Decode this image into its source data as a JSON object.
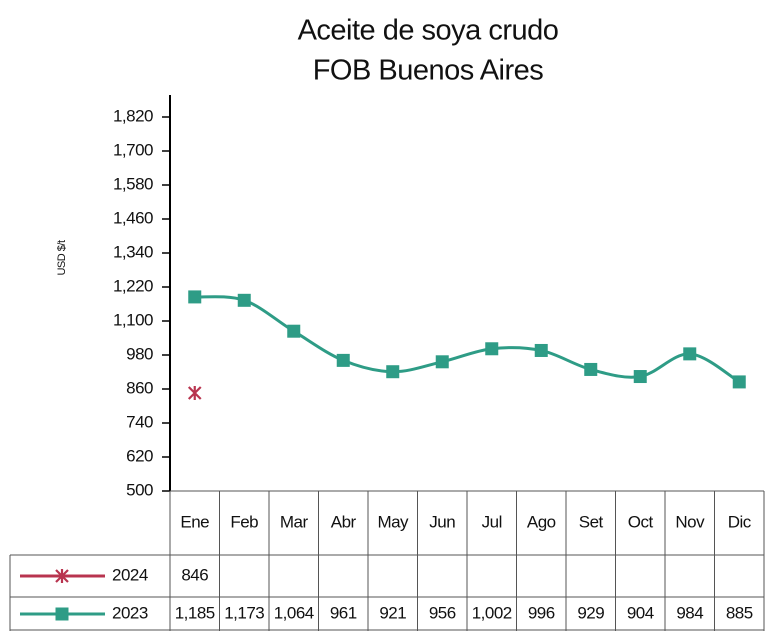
{
  "chart_data": {
    "type": "line",
    "title": [
      "Aceite de soya crudo",
      "FOB Buenos Aires"
    ],
    "y_label": "USD $/t",
    "categories": [
      "Ene",
      "Feb",
      "Mar",
      "Abr",
      "May",
      "Jun",
      "Jul",
      "Ago",
      "Set",
      "Oct",
      "Nov",
      "Dic"
    ],
    "series": [
      {
        "name": "2024",
        "color": "#b8344f",
        "marker": "star",
        "values": [
          846,
          null,
          null,
          null,
          null,
          null,
          null,
          null,
          null,
          null,
          null,
          null
        ]
      },
      {
        "name": "2023",
        "color": "#2e9c86",
        "marker": "square",
        "values": [
          1185,
          1173,
          1064,
          961,
          921,
          956,
          1002,
          996,
          929,
          904,
          984,
          885
        ],
        "value_labels": [
          "1,185",
          "1,173",
          "1,064",
          "961",
          "921",
          "956",
          "1,002",
          "996",
          "929",
          "904",
          "984",
          "885"
        ]
      }
    ],
    "ylim": [
      500,
      1820
    ],
    "yticks": [
      500,
      620,
      740,
      860,
      980,
      {
        "value": 1100,
        "label": "1,100"
      },
      {
        "value": 1220,
        "label": "1,220"
      },
      {
        "value": 1340,
        "label": "1,340"
      },
      {
        "value": 1460,
        "label": "1,460"
      },
      {
        "value": 1580,
        "label": "1,580"
      },
      {
        "value": 1700,
        "label": "1,700"
      },
      {
        "value": 1820,
        "label": "1,820"
      }
    ],
    "smooth": true,
    "grid": false
  }
}
